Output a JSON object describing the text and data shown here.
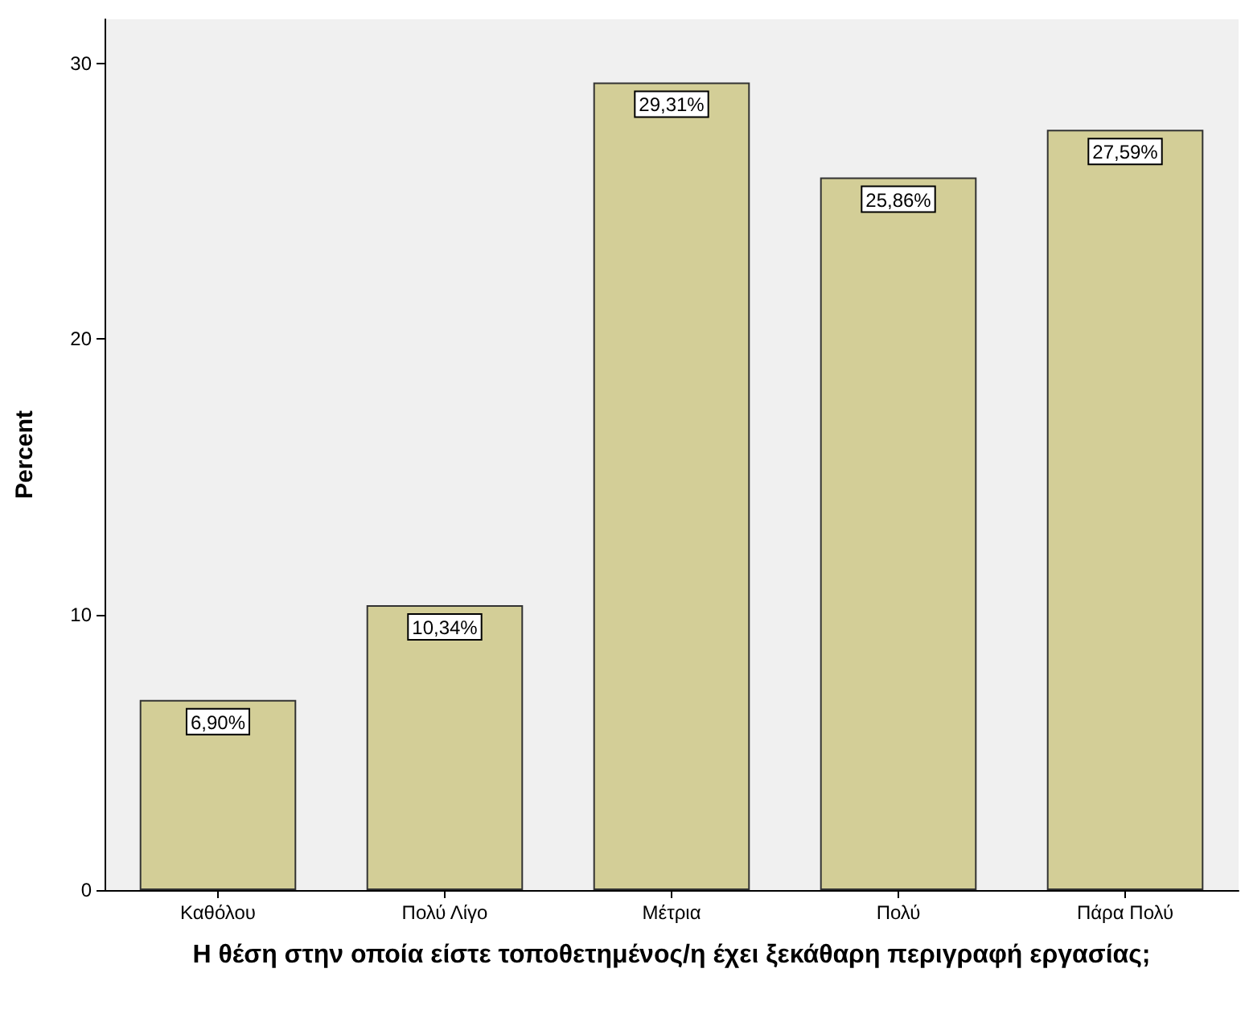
{
  "chart_data": {
    "type": "bar",
    "categories": [
      "Καθόλου",
      "Πολύ Λίγο",
      "Μέτρια",
      "Πολύ",
      "Πάρα Πολύ"
    ],
    "values": [
      6.9,
      10.34,
      29.31,
      25.86,
      27.59
    ],
    "value_labels": [
      "6,90%",
      "10,34%",
      "29,31%",
      "25,86%",
      "27,59%"
    ],
    "color": "#d3ce97",
    "xlabel": "Η θέση στην οποία είστε τοποθετημένος/η έχει ξεκάθαρη περιγραφή εργασίας;",
    "ylabel": "Percent",
    "ylim": [
      0,
      31.6
    ],
    "yticks": [
      0,
      10,
      20,
      30
    ],
    "grid": false
  }
}
